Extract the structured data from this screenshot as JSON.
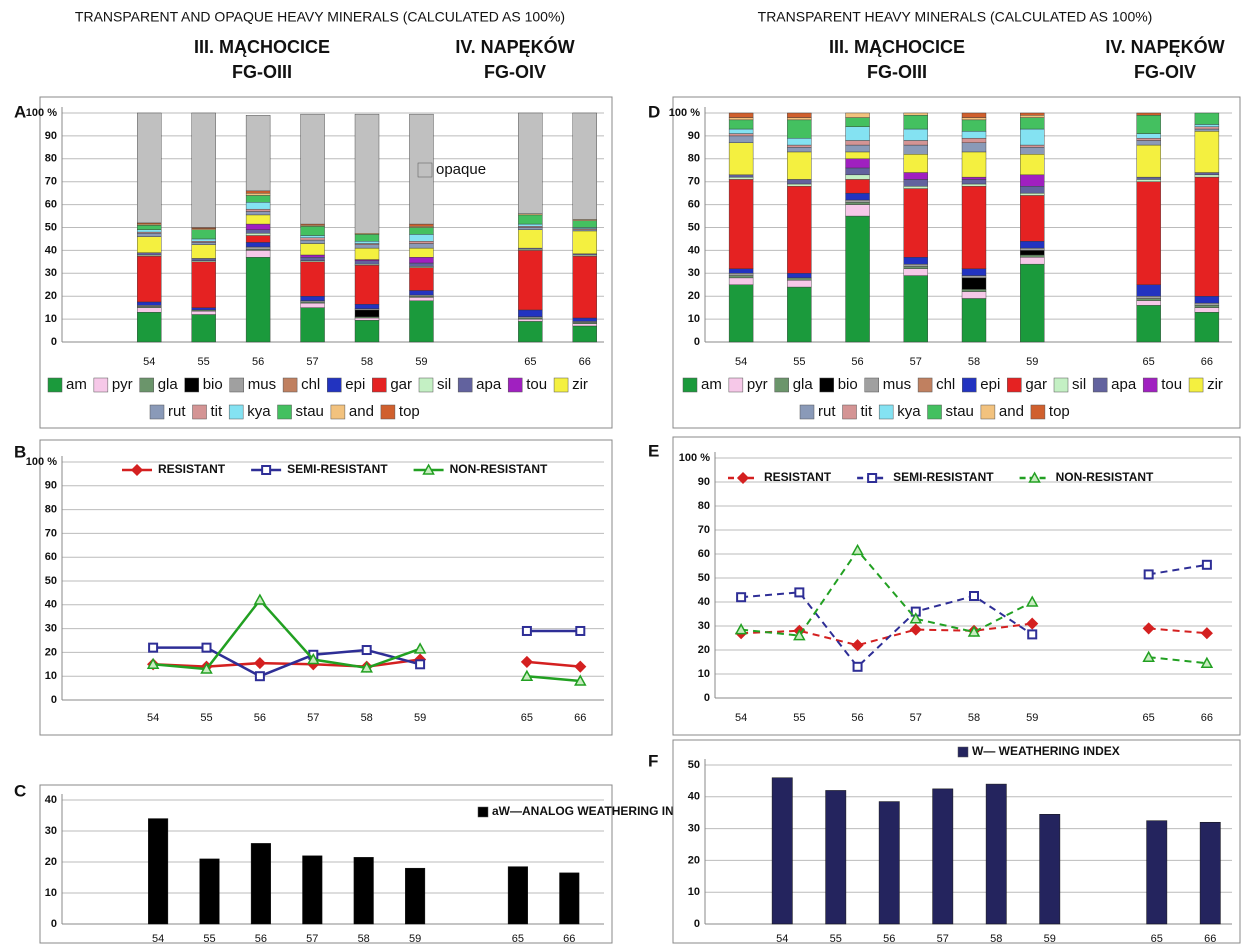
{
  "headers": {
    "left": {
      "title": "TRANSPARENT AND OPAQUE HEAVY MINERALS (CALCULATED AS 100%)",
      "site1": "III. MĄCHOCICE",
      "code1": "FG-OIII",
      "site2": "IV. NAPĘKÓW",
      "code2": "FG-OIV"
    },
    "right": {
      "title": "TRANSPARENT  HEAVY MINERALS (CALCULATED AS 100%)",
      "site1": "III. MĄCHOCICE",
      "code1": "FG-OIII",
      "site2": "IV. NAPĘKÓW",
      "code2": "FG-OIV"
    }
  },
  "chart_data": [
    {
      "panel": "A",
      "type": "stacked_bar",
      "grid": true,
      "categories": [
        "54",
        "55",
        "56",
        "57",
        "58",
        "59",
        null,
        "65",
        "66"
      ],
      "ylim": [
        0,
        100
      ],
      "yticks": [
        0,
        10,
        20,
        30,
        40,
        50,
        60,
        70,
        80,
        90,
        {
          "value": 100,
          "label": "100 %"
        }
      ],
      "series": [
        {
          "name": "am",
          "color": "#1b9a3c",
          "values": [
            13,
            12,
            37,
            15,
            9.5,
            18,
            null,
            9,
            7
          ]
        },
        {
          "name": "pyr",
          "color": "#f6c8e8",
          "values": [
            2,
            1.5,
            3,
            2,
            1,
            1.5,
            null,
            1,
            1
          ]
        },
        {
          "name": "gla",
          "color": "#6b956b",
          "values": [
            0.5,
            0.5,
            0.5,
            0.5,
            0.5,
            0.5,
            null,
            0.5,
            0.5
          ]
        },
        {
          "name": "bio",
          "color": "#000000",
          "values": [
            0,
            0,
            0,
            0,
            3,
            0,
            null,
            0,
            0
          ]
        },
        {
          "name": "mus",
          "color": "#a0a0a0",
          "values": [
            0.5,
            0,
            1,
            0.5,
            0.5,
            0.5,
            null,
            0.5,
            0.5
          ]
        },
        {
          "name": "chl",
          "color": "#c08060",
          "values": [
            0,
            0,
            0,
            0,
            0,
            0,
            null,
            0,
            0
          ]
        },
        {
          "name": "epi",
          "color": "#2233c0",
          "values": [
            1.5,
            1,
            2,
            2,
            2,
            2,
            null,
            3,
            1.5
          ]
        },
        {
          "name": "gar",
          "color": "#e52222",
          "values": [
            20,
            20,
            3,
            15,
            17,
            10,
            null,
            26,
            27
          ]
        },
        {
          "name": "sil",
          "color": "#c4f0c4",
          "values": [
            0.5,
            0.5,
            1,
            0.5,
            0.5,
            0.5,
            null,
            0.5,
            0.5
          ]
        },
        {
          "name": "apa",
          "color": "#62629e",
          "values": [
            1,
            1,
            1.5,
            1.5,
            1.5,
            1.5,
            null,
            0.5,
            0.5
          ]
        },
        {
          "name": "tou",
          "color": "#a020c0",
          "values": [
            0,
            0,
            2.5,
            1,
            0.5,
            2.5,
            null,
            0,
            0
          ]
        },
        {
          "name": "zir",
          "color": "#f4f040",
          "values": [
            7,
            6,
            4,
            5,
            5,
            4,
            null,
            8,
            10
          ]
        },
        {
          "name": "rut",
          "color": "#8a9ab8",
          "values": [
            1.5,
            1,
            1.5,
            1.5,
            1.5,
            2,
            null,
            1,
            0.5
          ]
        },
        {
          "name": "tit",
          "color": "#d49494",
          "values": [
            0.5,
            0.5,
            1,
            1,
            0.5,
            1,
            null,
            0.5,
            0.5
          ]
        },
        {
          "name": "kya",
          "color": "#84e2f2",
          "values": [
            1,
            1,
            3,
            1,
            1,
            3,
            null,
            1,
            0.5
          ]
        },
        {
          "name": "stau",
          "color": "#44c060",
          "values": [
            2,
            4,
            3,
            4,
            3,
            3,
            null,
            4,
            3
          ]
        },
        {
          "name": "and",
          "color": "#f2c27e",
          "values": [
            0.5,
            0.5,
            1,
            0.5,
            0.5,
            0.5,
            null,
            0.5,
            0.5
          ]
        },
        {
          "name": "top",
          "color": "#d0602e",
          "values": [
            0.5,
            0.5,
            1,
            0.5,
            0,
            1,
            null,
            0,
            0
          ]
        },
        {
          "name": "opaque",
          "color": "#c0c0c0",
          "legend": "inside",
          "values": [
            48,
            50,
            33,
            48,
            52,
            48,
            null,
            44,
            46.5
          ]
        }
      ]
    },
    {
      "panel": "B",
      "type": "line",
      "grid": true,
      "line_style": "solid",
      "categories": [
        null,
        "54",
        "55",
        "56",
        "57",
        "58",
        "59",
        null,
        "65",
        "66"
      ],
      "ylim": [
        0,
        100
      ],
      "yticks": [
        0,
        10,
        20,
        30,
        40,
        50,
        60,
        70,
        80,
        90,
        {
          "value": 100,
          "label": "100 %"
        }
      ],
      "series": [
        {
          "name": "RESISTANT",
          "color": "#d42020",
          "marker": "diamond",
          "values": [
            null,
            15,
            14,
            15.5,
            15,
            14,
            17,
            null,
            16,
            14
          ]
        },
        {
          "name": "SEMI-RESISTANT",
          "color": "#2e2e96",
          "marker": "square",
          "values": [
            null,
            22,
            22,
            10,
            19,
            21,
            15,
            null,
            29,
            29
          ]
        },
        {
          "name": "NON-RESISTANT",
          "color": "#22a022",
          "marker": "triangle",
          "values": [
            null,
            15,
            13,
            42,
            17,
            13.5,
            21.5,
            null,
            10,
            8
          ]
        }
      ]
    },
    {
      "panel": "C",
      "type": "bar",
      "grid": true,
      "categories": [
        null,
        "54",
        "55",
        "56",
        "57",
        "58",
        "59",
        null,
        "65",
        "66"
      ],
      "ylim": [
        0,
        40
      ],
      "yticks": [
        0,
        10,
        20,
        30,
        40
      ],
      "series": [
        {
          "name": "aW—ANALOG WEATHERING INDEX",
          "color": "#000000",
          "values": [
            null,
            34,
            21,
            26,
            22,
            21.5,
            18,
            null,
            18.5,
            16.5
          ]
        }
      ]
    },
    {
      "panel": "D",
      "type": "stacked_bar",
      "grid": true,
      "categories": [
        "54",
        "55",
        "56",
        "57",
        "58",
        "59",
        null,
        "65",
        "66"
      ],
      "ylim": [
        0,
        100
      ],
      "yticks": [
        0,
        10,
        20,
        30,
        40,
        50,
        60,
        70,
        80,
        90,
        {
          "value": 100,
          "label": "100 %"
        }
      ],
      "series": [
        {
          "name": "am",
          "color": "#1b9a3c",
          "values": [
            25,
            24,
            55,
            29,
            19,
            34,
            null,
            16,
            13
          ]
        },
        {
          "name": "pyr",
          "color": "#f6c8e8",
          "values": [
            3,
            3,
            5,
            3,
            3,
            3,
            null,
            2,
            2
          ]
        },
        {
          "name": "gla",
          "color": "#6b956b",
          "values": [
            1,
            1,
            1,
            1,
            1,
            1,
            null,
            1,
            1
          ]
        },
        {
          "name": "bio",
          "color": "#000000",
          "values": [
            0,
            0,
            0,
            0,
            5,
            2,
            null,
            0,
            0
          ]
        },
        {
          "name": "mus",
          "color": "#a0a0a0",
          "values": [
            1,
            0,
            1,
            1,
            1,
            1,
            null,
            1,
            1
          ]
        },
        {
          "name": "chl",
          "color": "#c08060",
          "values": [
            0,
            0,
            0,
            0,
            0,
            0,
            null,
            0,
            0
          ]
        },
        {
          "name": "epi",
          "color": "#2233c0",
          "values": [
            2,
            2,
            3,
            3,
            3,
            3,
            null,
            5,
            3
          ]
        },
        {
          "name": "gar",
          "color": "#e52222",
          "values": [
            39,
            38,
            6,
            30,
            36,
            20,
            null,
            45,
            52
          ]
        },
        {
          "name": "sil",
          "color": "#c4f0c4",
          "values": [
            1,
            1,
            2,
            1,
            1,
            1,
            null,
            1,
            1
          ]
        },
        {
          "name": "apa",
          "color": "#62629e",
          "values": [
            1,
            2,
            3,
            3,
            2,
            3,
            null,
            1,
            1
          ]
        },
        {
          "name": "tou",
          "color": "#a020c0",
          "values": [
            0,
            0,
            4,
            3,
            1,
            5,
            null,
            0,
            0
          ]
        },
        {
          "name": "zir",
          "color": "#f4f040",
          "values": [
            14,
            12,
            3,
            8,
            11,
            9,
            null,
            14,
            18
          ]
        },
        {
          "name": "rut",
          "color": "#8a9ab8",
          "values": [
            3,
            2,
            3,
            4,
            4,
            3,
            null,
            2,
            1
          ]
        },
        {
          "name": "tit",
          "color": "#d49494",
          "values": [
            1,
            1,
            2,
            2,
            2,
            1,
            null,
            1,
            1
          ]
        },
        {
          "name": "kya",
          "color": "#84e2f2",
          "values": [
            2,
            3,
            6,
            5,
            3,
            7,
            null,
            2,
            1
          ]
        },
        {
          "name": "stau",
          "color": "#44c060",
          "values": [
            4,
            8,
            4,
            6,
            5,
            5,
            null,
            8,
            5
          ]
        },
        {
          "name": "and",
          "color": "#f2c27e",
          "values": [
            1,
            1,
            2,
            1,
            1,
            1,
            null,
            0,
            0
          ]
        },
        {
          "name": "top",
          "color": "#d0602e",
          "values": [
            2,
            2,
            0,
            0,
            2,
            1,
            null,
            1,
            0
          ]
        }
      ]
    },
    {
      "panel": "E",
      "type": "line",
      "grid": true,
      "line_style": "dashed",
      "categories": [
        "54",
        "55",
        "56",
        "57",
        "58",
        "59",
        null,
        "65",
        "66"
      ],
      "ylim": [
        0,
        100
      ],
      "yticks": [
        0,
        10,
        20,
        30,
        40,
        50,
        60,
        70,
        80,
        90,
        {
          "value": 100,
          "label": "100 %"
        }
      ],
      "series": [
        {
          "name": "RESISTANT",
          "color": "#d42020",
          "marker": "diamond",
          "values": [
            27,
            28,
            22,
            28.5,
            28,
            31,
            null,
            29,
            27
          ]
        },
        {
          "name": "SEMI-RESISTANT",
          "color": "#2e2e96",
          "marker": "square",
          "values": [
            42,
            44,
            13,
            36,
            42.5,
            26.5,
            null,
            51.5,
            55.5
          ]
        },
        {
          "name": "NON-RESISTANT",
          "color": "#22a022",
          "marker": "triangle",
          "values": [
            28.5,
            26,
            61.5,
            33,
            27.5,
            40,
            null,
            17,
            14.5
          ]
        }
      ]
    },
    {
      "panel": "F",
      "type": "bar",
      "grid": true,
      "categories": [
        null,
        "54",
        "55",
        "56",
        "57",
        "58",
        "59",
        null,
        "65",
        "66"
      ],
      "ylim": [
        0,
        50
      ],
      "yticks": [
        0,
        10,
        20,
        30,
        40,
        50
      ],
      "series": [
        {
          "name": "W— WEATHERING INDEX",
          "color": "#24245e",
          "values": [
            null,
            46,
            42,
            38.5,
            42.5,
            44,
            34.5,
            null,
            32.5,
            32
          ]
        }
      ]
    }
  ]
}
